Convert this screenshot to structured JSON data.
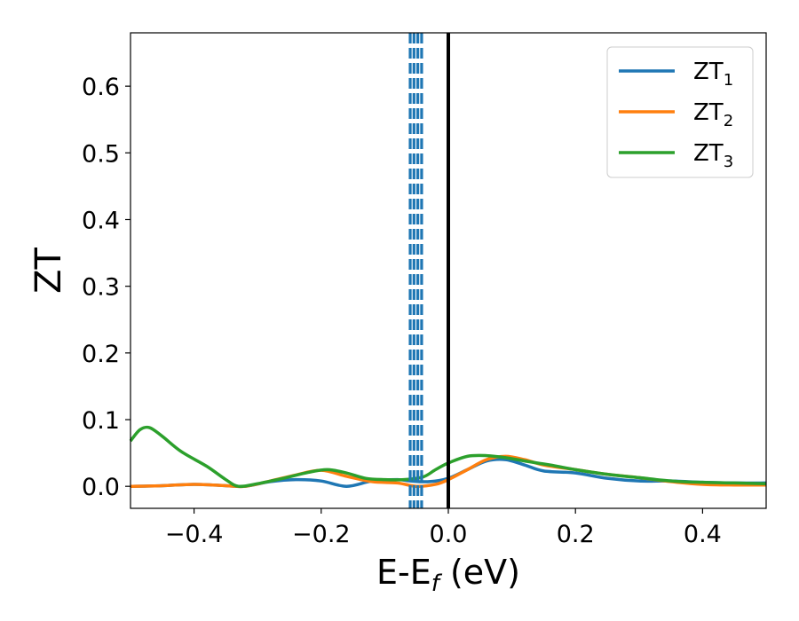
{
  "chart_data": {
    "type": "line",
    "title": "",
    "xlabel": {
      "main": "E-E",
      "sub": "f",
      "suffix": " (eV)"
    },
    "ylabel": "ZT",
    "xlim": [
      -0.5,
      0.5
    ],
    "ylim": [
      -0.033,
      0.68
    ],
    "x_ticks": [
      -0.4,
      -0.2,
      0.0,
      0.2,
      0.4
    ],
    "x_tick_labels": [
      "−0.4",
      "−0.2",
      "0.0",
      "0.2",
      "0.4"
    ],
    "y_ticks": [
      0.0,
      0.1,
      0.2,
      0.3,
      0.4,
      0.5,
      0.6
    ],
    "y_tick_labels": [
      "0.0",
      "0.1",
      "0.2",
      "0.3",
      "0.4",
      "0.5",
      "0.6"
    ],
    "grid": false,
    "legend_position": "top-right",
    "vertical_lines": [
      {
        "x": 0.0,
        "style": "solid",
        "color": "#000000"
      },
      {
        "x": -0.06,
        "style": "dashed",
        "color": "#1f77b4"
      },
      {
        "x": -0.054,
        "style": "dashed",
        "color": "#1f77b4"
      },
      {
        "x": -0.048,
        "style": "dashed",
        "color": "#1f77b4"
      },
      {
        "x": -0.042,
        "style": "dashed",
        "color": "#1f77b4"
      }
    ],
    "series": [
      {
        "name": "ZT",
        "sub": "1",
        "color": "#1f77b4",
        "points": [
          [
            -0.5,
            0.0
          ],
          [
            -0.45,
            0.001
          ],
          [
            -0.4,
            0.003
          ],
          [
            -0.35,
            0.001
          ],
          [
            -0.32,
            0.0
          ],
          [
            -0.28,
            0.007
          ],
          [
            -0.24,
            0.01
          ],
          [
            -0.2,
            0.008
          ],
          [
            -0.16,
            0.0
          ],
          [
            -0.12,
            0.008
          ],
          [
            -0.08,
            0.01
          ],
          [
            -0.06,
            0.008
          ],
          [
            -0.03,
            0.007
          ],
          [
            0.0,
            0.012
          ],
          [
            0.03,
            0.025
          ],
          [
            0.06,
            0.038
          ],
          [
            0.09,
            0.04
          ],
          [
            0.12,
            0.032
          ],
          [
            0.15,
            0.023
          ],
          [
            0.2,
            0.02
          ],
          [
            0.25,
            0.012
          ],
          [
            0.3,
            0.008
          ],
          [
            0.35,
            0.008
          ],
          [
            0.4,
            0.006
          ],
          [
            0.45,
            0.005
          ],
          [
            0.5,
            0.005
          ]
        ]
      },
      {
        "name": "ZT",
        "sub": "2",
        "color": "#ff7f0e",
        "points": [
          [
            -0.5,
            0.0
          ],
          [
            -0.45,
            0.001
          ],
          [
            -0.4,
            0.003
          ],
          [
            -0.35,
            0.001
          ],
          [
            -0.32,
            0.0
          ],
          [
            -0.28,
            0.008
          ],
          [
            -0.24,
            0.017
          ],
          [
            -0.2,
            0.024
          ],
          [
            -0.16,
            0.015
          ],
          [
            -0.12,
            0.007
          ],
          [
            -0.08,
            0.005
          ],
          [
            -0.05,
            0.0
          ],
          [
            -0.02,
            0.003
          ],
          [
            0.0,
            0.01
          ],
          [
            0.03,
            0.025
          ],
          [
            0.06,
            0.04
          ],
          [
            0.09,
            0.045
          ],
          [
            0.12,
            0.04
          ],
          [
            0.15,
            0.032
          ],
          [
            0.2,
            0.025
          ],
          [
            0.25,
            0.018
          ],
          [
            0.3,
            0.013
          ],
          [
            0.35,
            0.007
          ],
          [
            0.4,
            0.003
          ],
          [
            0.45,
            0.002
          ],
          [
            0.5,
            0.002
          ]
        ]
      },
      {
        "name": "ZT",
        "sub": "3",
        "color": "#2ca02c",
        "points": [
          [
            -0.5,
            0.068
          ],
          [
            -0.485,
            0.085
          ],
          [
            -0.47,
            0.088
          ],
          [
            -0.45,
            0.075
          ],
          [
            -0.42,
            0.052
          ],
          [
            -0.38,
            0.03
          ],
          [
            -0.35,
            0.01
          ],
          [
            -0.33,
            0.0
          ],
          [
            -0.3,
            0.004
          ],
          [
            -0.26,
            0.012
          ],
          [
            -0.22,
            0.021
          ],
          [
            -0.19,
            0.025
          ],
          [
            -0.16,
            0.02
          ],
          [
            -0.13,
            0.012
          ],
          [
            -0.1,
            0.01
          ],
          [
            -0.07,
            0.01
          ],
          [
            -0.04,
            0.014
          ],
          [
            -0.02,
            0.025
          ],
          [
            0.0,
            0.035
          ],
          [
            0.03,
            0.045
          ],
          [
            0.06,
            0.046
          ],
          [
            0.09,
            0.043
          ],
          [
            0.12,
            0.038
          ],
          [
            0.16,
            0.032
          ],
          [
            0.2,
            0.025
          ],
          [
            0.25,
            0.018
          ],
          [
            0.3,
            0.013
          ],
          [
            0.35,
            0.008
          ],
          [
            0.4,
            0.006
          ],
          [
            0.45,
            0.005
          ],
          [
            0.5,
            0.004
          ]
        ]
      }
    ]
  }
}
